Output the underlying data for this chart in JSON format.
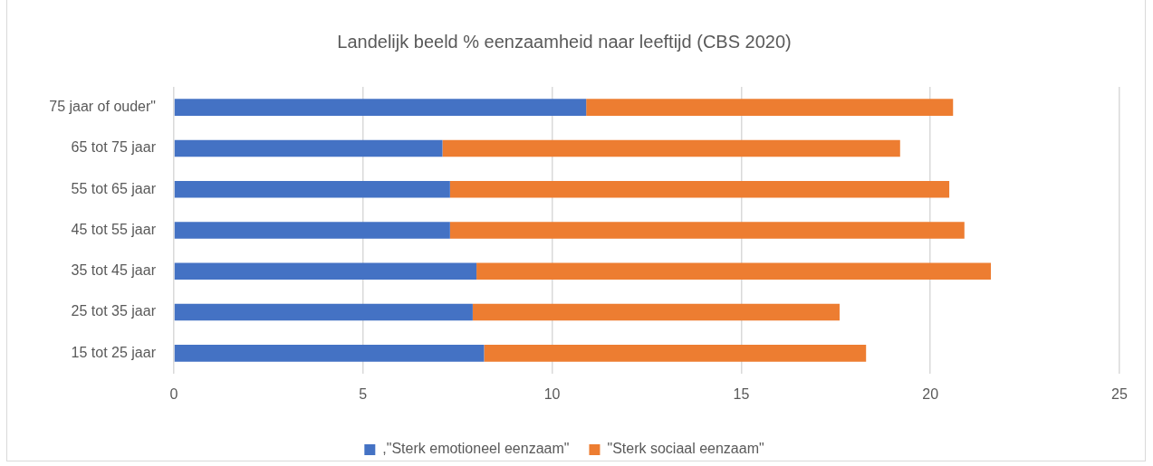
{
  "chart_data": {
    "type": "bar",
    "title": "Landelijk beeld % eenzaamheid naar leeftijd (CBS 2020)",
    "orientation": "horizontal",
    "stacked": true,
    "categories": [
      "75 jaar of ouder\"",
      "65 tot 75 jaar",
      "55 tot 65 jaar",
      "45 tot 55 jaar",
      "35 tot 45 jaar",
      "25 tot 35 jaar",
      "15 tot 25 jaar"
    ],
    "series": [
      {
        "name": ",\"Sterk emotioneel eenzaam\"",
        "color": "#4472c4",
        "values": [
          10.9,
          7.1,
          7.3,
          7.3,
          8.0,
          7.9,
          8.2
        ]
      },
      {
        "name": "\"Sterk sociaal eenzaam\"",
        "color": "#ed7d31",
        "values": [
          9.7,
          12.1,
          13.2,
          13.6,
          13.6,
          9.7,
          10.1
        ]
      }
    ],
    "xlim": [
      0,
      25
    ],
    "xticks": [
      0,
      5,
      10,
      15,
      20,
      25
    ],
    "grid": "x",
    "legend": "bottom"
  }
}
